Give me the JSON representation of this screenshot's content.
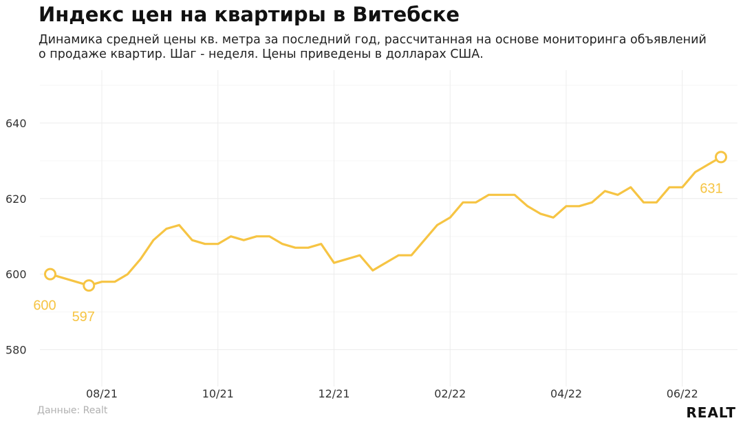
{
  "header": {
    "title": "Индекс цен на квартиры в Витебске",
    "subtitle": "Динамика средней цены кв. метра за последний год, рассчитанная на основе мониторинга объявлений о продаже квартир. Шаг - неделя. Цены приведены в долларах США."
  },
  "footer": {
    "source": "Данные: Realt",
    "brand": "REALT"
  },
  "chart_data": {
    "type": "line",
    "title": "Индекс цен на квартиры в Витебске",
    "xlabel": "",
    "ylabel": "",
    "color": "#f6c443",
    "ylim": [
      571,
      654
    ],
    "y_ticks": [
      580,
      600,
      620,
      640
    ],
    "x_ticks": [
      "08/21",
      "10/21",
      "12/21",
      "02/22",
      "04/22",
      "06/22"
    ],
    "x_tick_week_index": [
      4,
      13,
      22,
      31,
      40,
      49
    ],
    "grid": true,
    "series": [
      {
        "values": [
          600,
          599,
          598,
          597,
          598,
          598,
          600,
          604,
          609,
          612,
          613,
          609,
          608,
          608,
          610,
          609,
          610,
          610,
          608,
          607,
          607,
          608,
          603,
          604,
          605,
          601,
          603,
          605,
          605,
          609,
          613,
          615,
          619,
          619,
          621,
          621,
          621,
          618,
          616,
          615,
          618,
          618,
          619,
          622,
          621,
          623,
          619,
          619,
          623,
          623,
          627,
          629,
          631
        ]
      }
    ],
    "annotations": [
      {
        "index": 0,
        "label": "600"
      },
      {
        "index": 3,
        "label": "597"
      },
      {
        "index": 52,
        "label": "631"
      }
    ]
  }
}
